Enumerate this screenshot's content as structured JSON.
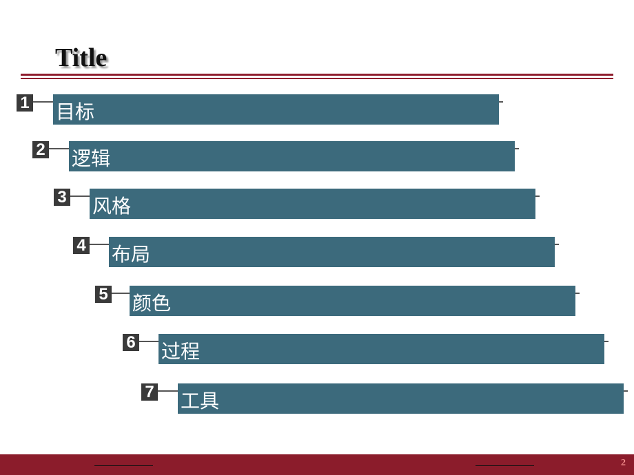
{
  "header": {
    "title": "Title"
  },
  "items": [
    {
      "number": "1",
      "label": "目标"
    },
    {
      "number": "2",
      "label": "逻辑"
    },
    {
      "number": "3",
      "label": "风格"
    },
    {
      "number": "4",
      "label": "布局"
    },
    {
      "number": "5",
      "label": "颜色"
    },
    {
      "number": "6",
      "label": "过程"
    },
    {
      "number": "7",
      "label": "工具"
    }
  ],
  "footer": {
    "page": "2"
  }
}
